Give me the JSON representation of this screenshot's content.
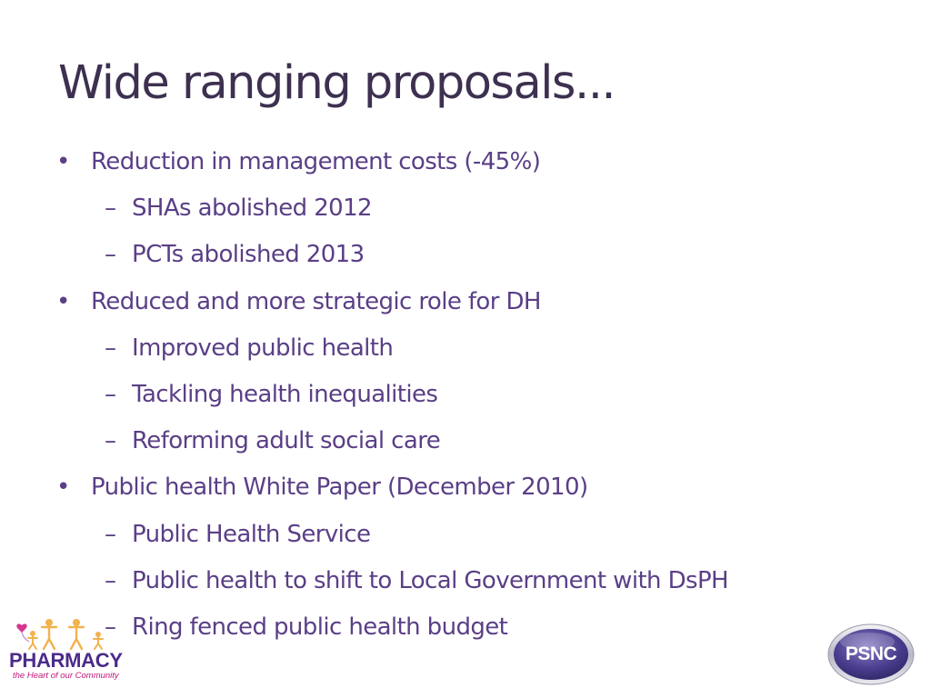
{
  "slide": {
    "title": "Wide ranging proposals...",
    "items": [
      {
        "level": 1,
        "marker": "•",
        "text": "Reduction in management costs (-45%)"
      },
      {
        "level": 2,
        "marker": "–",
        "text": "SHAs abolished 2012"
      },
      {
        "level": 2,
        "marker": "–",
        "text": "PCTs abolished 2013"
      },
      {
        "level": 1,
        "marker": "•",
        "text": "Reduced and more strategic role for DH"
      },
      {
        "level": 2,
        "marker": "–",
        "text": "Improved public health"
      },
      {
        "level": 2,
        "marker": "–",
        "text": "Tackling health inequalities"
      },
      {
        "level": 2,
        "marker": "–",
        "text": "Reforming adult social care"
      },
      {
        "level": 1,
        "marker": "•",
        "text": "Public health White Paper (December 2010)"
      },
      {
        "level": 2,
        "marker": "–",
        "text": "Public Health Service"
      },
      {
        "level": 2,
        "marker": "–",
        "text": "Public health to shift to Local Government with DsPH"
      },
      {
        "level": 2,
        "marker": "–",
        "text": "Ring fenced public health budget"
      }
    ]
  },
  "logos": {
    "pharmacy": {
      "word": "PHARMACY",
      "tagline": "the Heart of our Community",
      "icon": "stick-figures-with-heart-balloon-icon"
    },
    "psnc": {
      "text": "PSNC",
      "icon": "psnc-oval-badge-icon"
    }
  },
  "colors": {
    "title": "#3d3050",
    "body": "#5a3f86",
    "pharmacy_purple": "#4c2b8a",
    "pharmacy_pink": "#c0187a",
    "psnc_purple": "#4b3f8f"
  }
}
